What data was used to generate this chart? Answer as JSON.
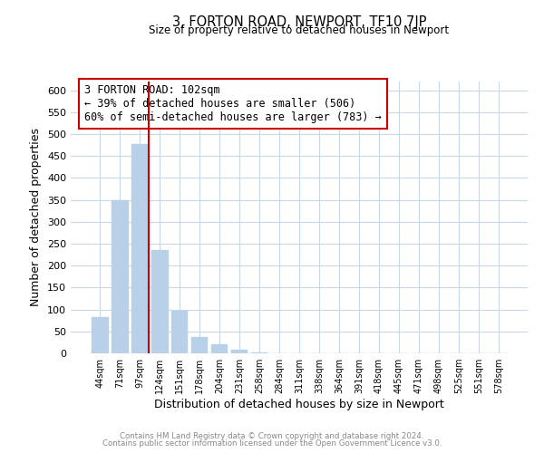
{
  "title": "3, FORTON ROAD, NEWPORT, TF10 7JP",
  "subtitle": "Size of property relative to detached houses in Newport",
  "xlabel": "Distribution of detached houses by size in Newport",
  "ylabel": "Number of detached properties",
  "bar_color": "#b8d0e8",
  "bar_edge_color": "#b8d0e8",
  "categories": [
    "44sqm",
    "71sqm",
    "97sqm",
    "124sqm",
    "151sqm",
    "178sqm",
    "204sqm",
    "231sqm",
    "258sqm",
    "284sqm",
    "311sqm",
    "338sqm",
    "364sqm",
    "391sqm",
    "418sqm",
    "445sqm",
    "471sqm",
    "498sqm",
    "525sqm",
    "551sqm",
    "578sqm"
  ],
  "values": [
    83,
    350,
    478,
    235,
    97,
    37,
    20,
    8,
    3,
    0,
    0,
    0,
    1,
    0,
    0,
    1,
    0,
    0,
    0,
    0,
    1
  ],
  "ylim": [
    0,
    620
  ],
  "yticks": [
    0,
    50,
    100,
    150,
    200,
    250,
    300,
    350,
    400,
    450,
    500,
    550,
    600
  ],
  "vline_x_idx": 2,
  "vline_color": "#cc0000",
  "annotation_title": "3 FORTON ROAD: 102sqm",
  "annotation_line1": "← 39% of detached houses are smaller (506)",
  "annotation_line2": "60% of semi-detached houses are larger (783) →",
  "footer_line1": "Contains HM Land Registry data © Crown copyright and database right 2024.",
  "footer_line2": "Contains public sector information licensed under the Open Government Licence v3.0.",
  "background_color": "#ffffff",
  "grid_color": "#c8d8e8"
}
